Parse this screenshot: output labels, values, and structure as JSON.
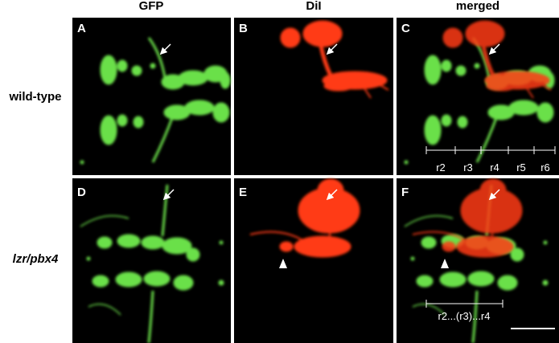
{
  "columns": [
    "GFP",
    "DiI",
    "merged"
  ],
  "rows": [
    "wild-type",
    "lzr/pbx4"
  ],
  "panels": [
    "A",
    "B",
    "C",
    "D",
    "E",
    "F"
  ],
  "annotations": {
    "rhombomeres": [
      "r2",
      "r3",
      "r4",
      "r5",
      "r6"
    ],
    "mutant_span": "r2...(r3)...r4"
  }
}
